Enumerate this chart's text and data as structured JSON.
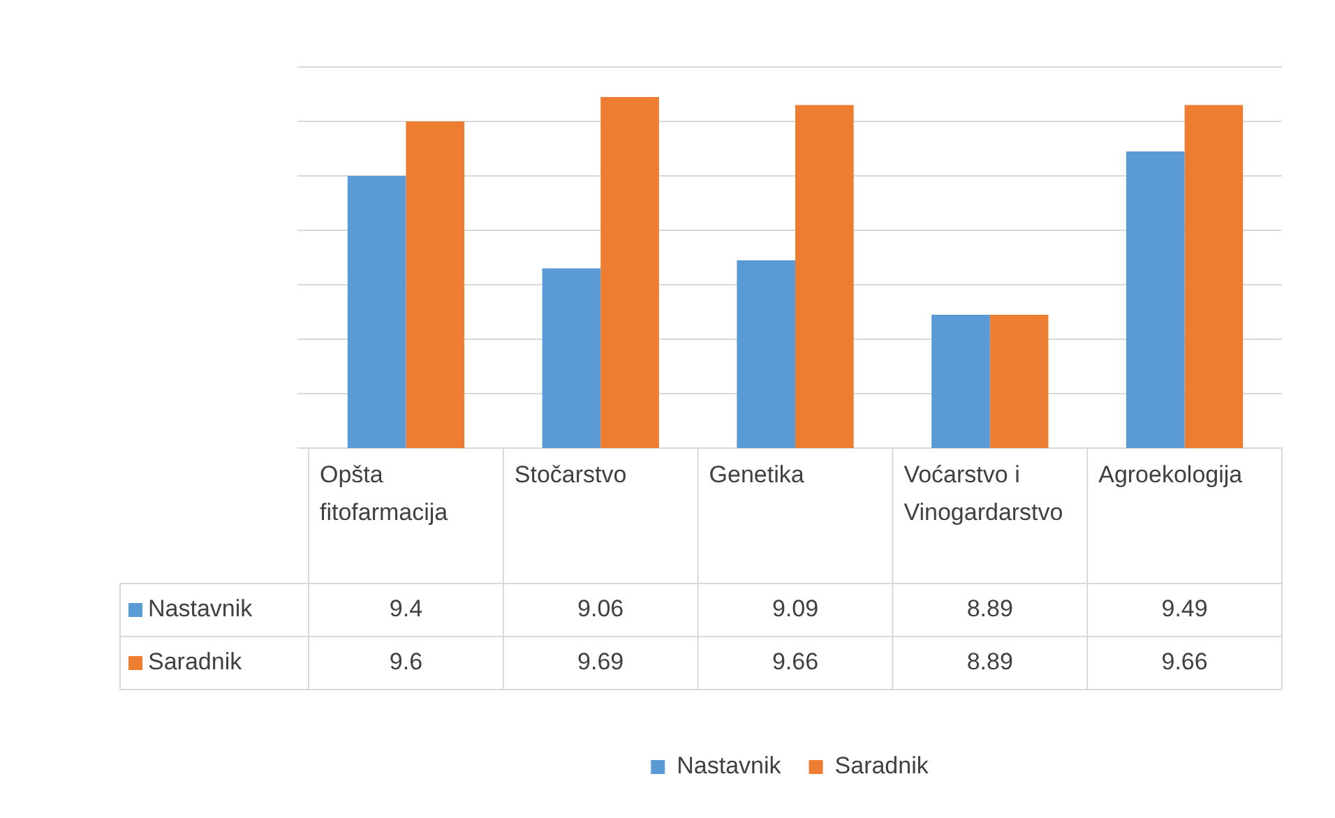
{
  "chart_data": {
    "type": "bar",
    "categories": [
      "Opšta fitofarmacija",
      "Stočarstvo",
      "Genetika",
      "Voćarstvo i Vinogardarstvo",
      "Agroekologija"
    ],
    "series": [
      {
        "name": "Nastavnik",
        "color": "#5b9bd5",
        "values": [
          9.4,
          9.06,
          9.09,
          8.89,
          9.49
        ]
      },
      {
        "name": "Saradnik",
        "color": "#ed7d31",
        "values": [
          9.6,
          9.69,
          9.66,
          8.89,
          9.66
        ]
      }
    ],
    "ylim": [
      8.4,
      9.8
    ],
    "yticks": [
      {
        "value": 8.4,
        "label": null
      },
      {
        "value": 8.6,
        "label": null
      },
      {
        "value": 8.8,
        "label": null
      },
      {
        "value": 9.0,
        "label": null
      },
      {
        "value": 9.2,
        "label": null
      },
      {
        "value": 9.4,
        "label": null
      },
      {
        "value": 9.6,
        "label": null
      },
      {
        "value": 9.8,
        "label": null
      }
    ],
    "grid": "y",
    "tick_labels": "x",
    "legend": "bottom",
    "data_labels": true
  }
}
